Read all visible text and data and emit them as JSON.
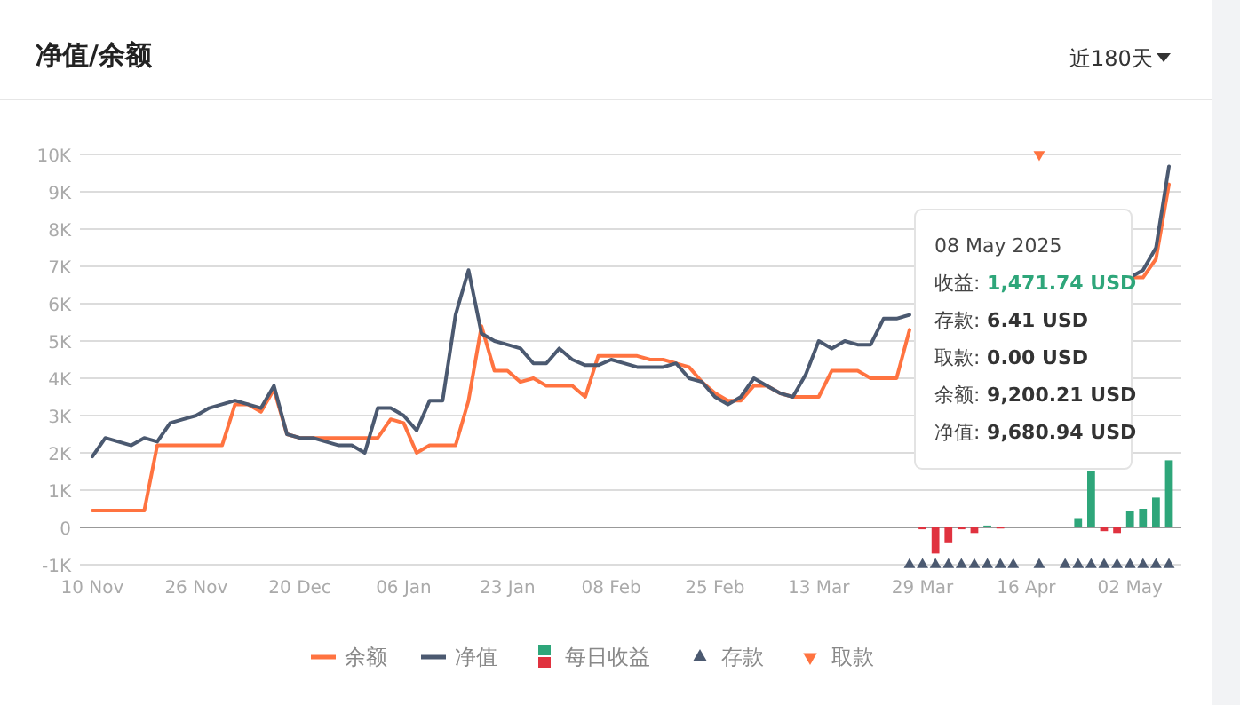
{
  "chart_data": {
    "type": "line",
    "title": "净值/余额",
    "grid": "y",
    "legend": "bottom",
    "annotations": [
      "近180天",
      "08 May 2025",
      "收益: 1,471.74 USD",
      "存款: 6.41 USD",
      "取款: 0.00 USD",
      "余额: 9,200.21 USD",
      "净值: 9,680.94 USD"
    ],
    "categories": [
      "10 Nov",
      null,
      null,
      null,
      null,
      null,
      null,
      null,
      "26 Nov",
      null,
      null,
      null,
      null,
      null,
      null,
      null,
      "20 Dec",
      null,
      null,
      null,
      null,
      null,
      null,
      null,
      "06 Jan",
      null,
      null,
      null,
      null,
      null,
      null,
      null,
      "23 Jan",
      null,
      null,
      null,
      null,
      null,
      null,
      null,
      "08 Feb",
      null,
      null,
      null,
      null,
      null,
      null,
      null,
      "25 Feb",
      null,
      null,
      null,
      null,
      null,
      null,
      null,
      "13 Mar",
      null,
      null,
      null,
      null,
      null,
      null,
      null,
      "29 Mar",
      null,
      null,
      null,
      null,
      null,
      null,
      null,
      "16 Apr",
      null,
      null,
      null,
      null,
      null,
      null,
      null,
      "02 May",
      null,
      null,
      null
    ],
    "ylim": [
      -1000,
      10000
    ],
    "yticks": [
      {
        "value": -1000,
        "label": "-1K"
      },
      0,
      {
        "value": 1000,
        "label": "1K"
      },
      {
        "value": 2000,
        "label": "2K"
      },
      {
        "value": 3000,
        "label": "3K"
      },
      {
        "value": 4000,
        "label": "4K"
      },
      {
        "value": 5000,
        "label": "5K"
      },
      {
        "value": 6000,
        "label": "6K"
      },
      {
        "value": 7000,
        "label": "7K"
      },
      {
        "value": 8000,
        "label": "8K"
      },
      {
        "value": 9000,
        "label": "9K"
      },
      {
        "value": 10000,
        "label": "10K"
      }
    ],
    "series": [
      {
        "name": "余额",
        "color": "#ff7340",
        "values": [
          450,
          450,
          450,
          450,
          450,
          2200,
          2200,
          2200,
          2200,
          2200,
          2200,
          3300,
          3300,
          3100,
          3700,
          2500,
          2400,
          2400,
          2400,
          2400,
          2400,
          2400,
          2400,
          2900,
          2800,
          2000,
          2200,
          2200,
          2200,
          3400,
          5400,
          4200,
          4200,
          3900,
          4000,
          3800,
          3800,
          3800,
          3500,
          4600,
          4600,
          4600,
          4600,
          4500,
          4500,
          4400,
          4300,
          3900,
          3600,
          3400,
          3400,
          3800,
          3800,
          3600,
          3500,
          3500,
          3500,
          4200,
          4200,
          4200,
          4000,
          4000,
          4000,
          5300,
          null,
          null,
          null,
          null,
          null,
          null,
          null,
          null,
          null,
          null,
          null,
          null,
          null,
          null,
          null,
          null,
          6700,
          6700,
          7200,
          9200
        ]
      },
      {
        "name": "净值",
        "color": "#4b5970",
        "values": [
          1900,
          2400,
          2300,
          2200,
          2400,
          2300,
          2800,
          2900,
          3000,
          3200,
          3300,
          3400,
          3300,
          3200,
          3800,
          2500,
          2400,
          2400,
          2300,
          2200,
          2200,
          2000,
          3200,
          3200,
          3000,
          2600,
          3400,
          3400,
          5700,
          6900,
          5200,
          5000,
          4900,
          4800,
          4400,
          4400,
          4800,
          4500,
          4350,
          4350,
          4500,
          4400,
          4300,
          4300,
          4300,
          4400,
          4000,
          3900,
          3500,
          3300,
          3500,
          4000,
          3800,
          3600,
          3500,
          4100,
          5000,
          4800,
          5000,
          4900,
          4900,
          5600,
          5600,
          5700,
          null,
          null,
          null,
          null,
          null,
          null,
          null,
          null,
          null,
          null,
          null,
          null,
          null,
          null,
          null,
          null,
          6700,
          6900,
          7500,
          9680
        ]
      },
      {
        "name": "每日收益",
        "type": "bar",
        "values": [
          null,
          null,
          null,
          null,
          null,
          null,
          null,
          null,
          null,
          null,
          null,
          null,
          null,
          null,
          null,
          null,
          null,
          null,
          null,
          null,
          null,
          null,
          null,
          null,
          null,
          null,
          null,
          null,
          null,
          null,
          null,
          null,
          null,
          null,
          null,
          null,
          null,
          null,
          null,
          null,
          null,
          null,
          null,
          null,
          null,
          null,
          null,
          null,
          null,
          null,
          null,
          null,
          null,
          null,
          null,
          null,
          null,
          null,
          null,
          null,
          null,
          null,
          null,
          null,
          -50,
          -700,
          -400,
          -50,
          -150,
          50,
          -30,
          null,
          null,
          null,
          null,
          null,
          250,
          1500,
          -100,
          -150,
          450,
          500,
          800,
          1800
        ],
        "colors": [
          null,
          null,
          null,
          null,
          null,
          null,
          null,
          null,
          null,
          null,
          null,
          null,
          null,
          null,
          null,
          null,
          null,
          null,
          null,
          null,
          null,
          null,
          null,
          null,
          null,
          null,
          null,
          null,
          null,
          null,
          null,
          null,
          null,
          null,
          null,
          null,
          null,
          null,
          null,
          null,
          null,
          null,
          null,
          null,
          null,
          null,
          null,
          null,
          null,
          null,
          null,
          null,
          null,
          null,
          null,
          null,
          null,
          null,
          null,
          null,
          null,
          null,
          null,
          null,
          "#e0323f",
          "#e0323f",
          "#e0323f",
          "#e0323f",
          "#e0323f",
          "#2ea67a",
          "#e0323f",
          null,
          null,
          null,
          null,
          null,
          "#2ea67a",
          "#2ea67a",
          "#e0323f",
          "#e0323f",
          "#2ea67a",
          "#2ea67a",
          "#2ea67a",
          "#2ea67a"
        ]
      },
      {
        "name": "存款",
        "type": "scatter",
        "marker": "triangle",
        "color": "#4b5970",
        "values": [
          null,
          null,
          null,
          null,
          null,
          null,
          null,
          null,
          null,
          null,
          null,
          null,
          null,
          null,
          null,
          null,
          null,
          null,
          null,
          null,
          null,
          null,
          null,
          null,
          null,
          null,
          null,
          null,
          null,
          null,
          null,
          null,
          null,
          null,
          null,
          null,
          null,
          null,
          null,
          null,
          null,
          null,
          null,
          null,
          null,
          null,
          null,
          null,
          null,
          null,
          null,
          null,
          null,
          null,
          null,
          null,
          null,
          null,
          null,
          null,
          null,
          null,
          null,
          -1000,
          -1000,
          -1000,
          -1000,
          -1000,
          -1000,
          -1000,
          -1000,
          -1000,
          null,
          -1000,
          null,
          -1000,
          -1000,
          -1000,
          -1000,
          -1000,
          -1000,
          -1000,
          -1000,
          -1000
        ]
      },
      {
        "name": "取款",
        "type": "scatter",
        "marker": "triangle",
        "color": "#ff7340",
        "values": [
          null,
          null,
          null,
          null,
          null,
          null,
          null,
          null,
          null,
          null,
          null,
          null,
          null,
          null,
          null,
          null,
          null,
          null,
          null,
          null,
          null,
          null,
          null,
          null,
          null,
          null,
          null,
          null,
          null,
          null,
          null,
          null,
          null,
          null,
          null,
          null,
          null,
          null,
          null,
          null,
          null,
          null,
          null,
          null,
          null,
          null,
          null,
          null,
          null,
          null,
          null,
          null,
          null,
          null,
          null,
          null,
          null,
          null,
          null,
          null,
          null,
          null,
          null,
          null,
          null,
          null,
          null,
          null,
          null,
          null,
          null,
          null,
          null,
          10000,
          null,
          null,
          null,
          null,
          null,
          null,
          null,
          null,
          null,
          null
        ]
      }
    ]
  }
}
